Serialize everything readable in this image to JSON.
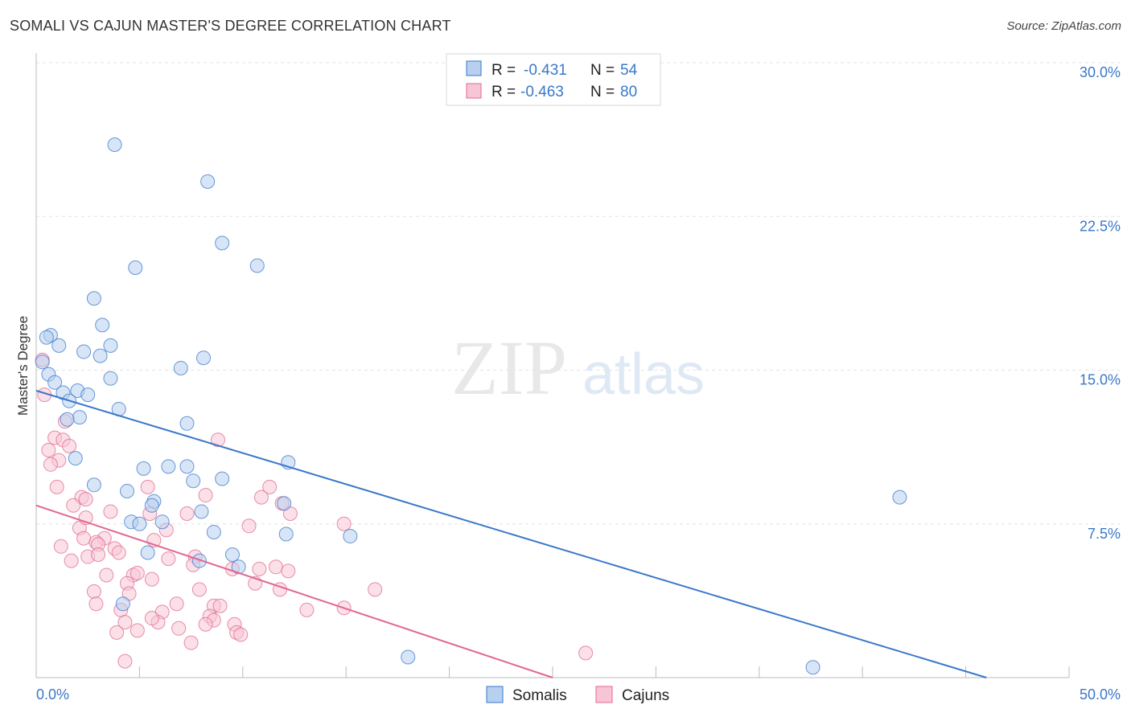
{
  "title": "SOMALI VS CAJUN MASTER'S DEGREE CORRELATION CHART",
  "source": "Source: ZipAtlas.com",
  "watermark": {
    "zip": "ZIP",
    "atlas": "atlas"
  },
  "colors": {
    "blue": "#3a78c9",
    "blue_fill": "#b7d0f0",
    "pink": "#e06890",
    "pink_fill": "#f7c6d6",
    "grid": "#e3e3e3"
  },
  "legend": {
    "r_label": "R =",
    "n_label": "N =",
    "rows": [
      {
        "r": "-0.431",
        "n": "54"
      },
      {
        "r": "-0.463",
        "n": "80"
      }
    ]
  },
  "bottom_legend": [
    "Somalis",
    "Cajuns"
  ],
  "chart_data": {
    "type": "scatter",
    "ylabel": "Master's Degree",
    "xlim": [
      0,
      50
    ],
    "ylim": [
      0,
      30
    ],
    "x_tick_labels": [
      "0.0%",
      "50.0%"
    ],
    "y_ticks": [
      7.5,
      15.0,
      22.5,
      30.0
    ],
    "y_tick_labels": [
      "7.5%",
      "15.0%",
      "22.5%",
      "30.0%"
    ],
    "grid": true,
    "legend_position": "top-center",
    "series": [
      {
        "name": "Somalis",
        "color": "#3a78c9",
        "trend": {
          "x": [
            0,
            46
          ],
          "y": [
            14.0,
            0.0
          ]
        },
        "points": [
          [
            3.8,
            26.0
          ],
          [
            8.3,
            24.2
          ],
          [
            9.0,
            21.2
          ],
          [
            10.7,
            20.1
          ],
          [
            4.8,
            20.0
          ],
          [
            2.8,
            18.5
          ],
          [
            3.2,
            17.2
          ],
          [
            0.7,
            16.7
          ],
          [
            0.5,
            16.6
          ],
          [
            1.1,
            16.2
          ],
          [
            3.6,
            16.2
          ],
          [
            2.3,
            15.9
          ],
          [
            3.1,
            15.7
          ],
          [
            8.1,
            15.6
          ],
          [
            7.0,
            15.1
          ],
          [
            3.6,
            14.6
          ],
          [
            0.6,
            14.8
          ],
          [
            0.9,
            14.4
          ],
          [
            1.3,
            13.9
          ],
          [
            2.0,
            14.0
          ],
          [
            2.5,
            13.8
          ],
          [
            1.6,
            13.5
          ],
          [
            4.0,
            13.1
          ],
          [
            2.1,
            12.7
          ],
          [
            1.5,
            12.6
          ],
          [
            7.3,
            12.4
          ],
          [
            1.9,
            10.7
          ],
          [
            12.2,
            10.5
          ],
          [
            5.2,
            10.2
          ],
          [
            6.4,
            10.3
          ],
          [
            7.3,
            10.3
          ],
          [
            9.0,
            9.7
          ],
          [
            7.6,
            9.6
          ],
          [
            2.8,
            9.4
          ],
          [
            4.4,
            9.1
          ],
          [
            5.7,
            8.6
          ],
          [
            5.6,
            8.4
          ],
          [
            12.0,
            8.5
          ],
          [
            41.8,
            8.8
          ],
          [
            8.0,
            8.1
          ],
          [
            4.6,
            7.6
          ],
          [
            5.0,
            7.5
          ],
          [
            6.1,
            7.6
          ],
          [
            8.6,
            7.1
          ],
          [
            12.1,
            7.0
          ],
          [
            15.2,
            6.9
          ],
          [
            5.4,
            6.1
          ],
          [
            9.5,
            6.0
          ],
          [
            7.9,
            5.7
          ],
          [
            9.8,
            5.4
          ],
          [
            4.2,
            3.6
          ],
          [
            18.0,
            1.0
          ],
          [
            37.6,
            0.5
          ],
          [
            0.3,
            15.4
          ]
        ]
      },
      {
        "name": "Cajuns",
        "color": "#e06890",
        "trend": {
          "x": [
            0,
            25
          ],
          "y": [
            8.4,
            0.0
          ]
        },
        "points": [
          [
            0.3,
            15.5
          ],
          [
            0.4,
            13.8
          ],
          [
            1.4,
            12.5
          ],
          [
            0.9,
            11.7
          ],
          [
            1.3,
            11.6
          ],
          [
            0.6,
            11.1
          ],
          [
            1.6,
            11.3
          ],
          [
            1.1,
            10.6
          ],
          [
            0.7,
            10.4
          ],
          [
            8.8,
            11.6
          ],
          [
            1.0,
            9.3
          ],
          [
            5.4,
            9.3
          ],
          [
            11.3,
            9.3
          ],
          [
            8.2,
            8.9
          ],
          [
            2.2,
            8.8
          ],
          [
            2.4,
            8.7
          ],
          [
            10.9,
            8.8
          ],
          [
            1.8,
            8.4
          ],
          [
            11.9,
            8.5
          ],
          [
            3.6,
            8.1
          ],
          [
            5.5,
            8.0
          ],
          [
            7.3,
            8.0
          ],
          [
            12.3,
            8.0
          ],
          [
            2.1,
            7.3
          ],
          [
            10.3,
            7.4
          ],
          [
            14.9,
            7.5
          ],
          [
            2.3,
            6.8
          ],
          [
            3.3,
            6.8
          ],
          [
            2.9,
            6.6
          ],
          [
            5.7,
            6.7
          ],
          [
            1.2,
            6.4
          ],
          [
            3.0,
            6.5
          ],
          [
            3.8,
            6.3
          ],
          [
            2.5,
            5.9
          ],
          [
            3.0,
            6.0
          ],
          [
            4.0,
            6.1
          ],
          [
            6.4,
            5.8
          ],
          [
            7.7,
            5.9
          ],
          [
            1.7,
            5.7
          ],
          [
            7.6,
            5.5
          ],
          [
            9.5,
            5.3
          ],
          [
            10.8,
            5.3
          ],
          [
            11.6,
            5.4
          ],
          [
            3.4,
            5.0
          ],
          [
            4.7,
            5.0
          ],
          [
            4.9,
            5.1
          ],
          [
            5.6,
            4.8
          ],
          [
            12.2,
            5.2
          ],
          [
            4.4,
            4.6
          ],
          [
            10.6,
            4.6
          ],
          [
            7.9,
            4.3
          ],
          [
            11.8,
            4.3
          ],
          [
            16.4,
            4.3
          ],
          [
            2.8,
            4.2
          ],
          [
            4.5,
            4.1
          ],
          [
            2.9,
            3.6
          ],
          [
            6.8,
            3.6
          ],
          [
            8.6,
            3.5
          ],
          [
            8.9,
            3.5
          ],
          [
            14.9,
            3.4
          ],
          [
            4.1,
            3.3
          ],
          [
            6.1,
            3.2
          ],
          [
            13.1,
            3.3
          ],
          [
            8.4,
            3.0
          ],
          [
            8.6,
            2.8
          ],
          [
            5.9,
            2.7
          ],
          [
            4.3,
            2.7
          ],
          [
            8.2,
            2.6
          ],
          [
            9.6,
            2.6
          ],
          [
            5.6,
            2.9
          ],
          [
            6.9,
            2.4
          ],
          [
            4.9,
            2.3
          ],
          [
            3.9,
            2.2
          ],
          [
            9.7,
            2.2
          ],
          [
            9.9,
            2.1
          ],
          [
            7.5,
            1.7
          ],
          [
            26.6,
            1.2
          ],
          [
            4.3,
            0.8
          ],
          [
            2.4,
            7.8
          ],
          [
            6.3,
            7.2
          ]
        ]
      }
    ]
  }
}
